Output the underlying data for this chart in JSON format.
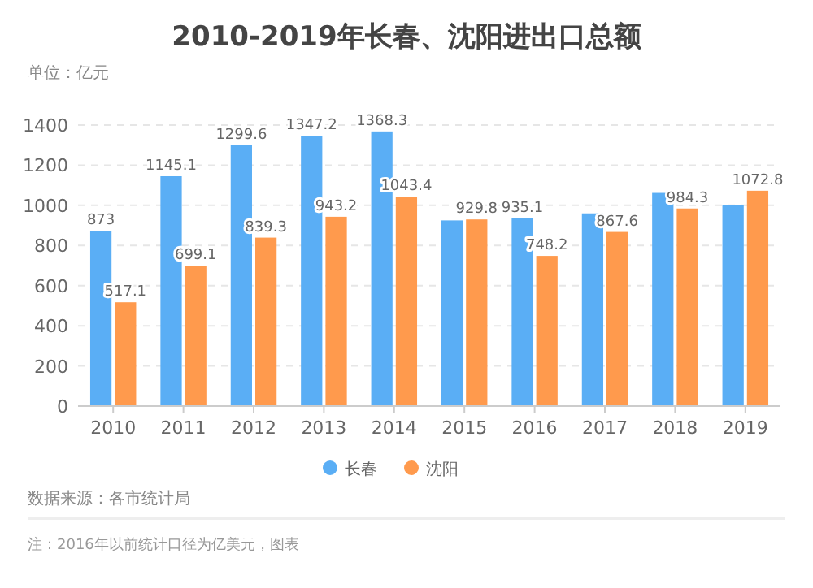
{
  "chart_data": {
    "type": "bar",
    "title": "2010-2019年长春、沈阳进出口总额",
    "subtitle": "单位：亿元",
    "categories": [
      "2010",
      "2011",
      "2012",
      "2013",
      "2014",
      "2015",
      "2016",
      "2017",
      "2018",
      "2019"
    ],
    "series": [
      {
        "name": "长春",
        "color": "#5aaef5",
        "values": [
          873,
          1145.1,
          1299.6,
          1347.2,
          1368.3,
          925,
          935.1,
          960,
          1062,
          1003
        ],
        "value_labels": [
          "873",
          "1145.1",
          "1299.6",
          "1347.2",
          "1368.3",
          null,
          "935.1",
          null,
          null,
          null
        ]
      },
      {
        "name": "沈阳",
        "color": "#ff9a4d",
        "values": [
          517.1,
          699.1,
          839.3,
          943.2,
          1043.4,
          929.8,
          748.2,
          867.6,
          984.3,
          1072.8
        ],
        "value_labels": [
          "517.1",
          "699.1",
          "839.3",
          "943.2",
          "1043.4",
          "929.8",
          "748.2",
          "867.6",
          "984.3",
          "1072.8"
        ]
      }
    ],
    "ylim": [
      0,
      1400
    ],
    "yticks": [
      0,
      200,
      400,
      600,
      800,
      1000,
      1200,
      1400
    ],
    "grid": "y",
    "legend": "bottom",
    "annotations": [
      "数据来源：各市统计局",
      "注：2016年以前统计口径为亿美元，图表"
    ]
  }
}
